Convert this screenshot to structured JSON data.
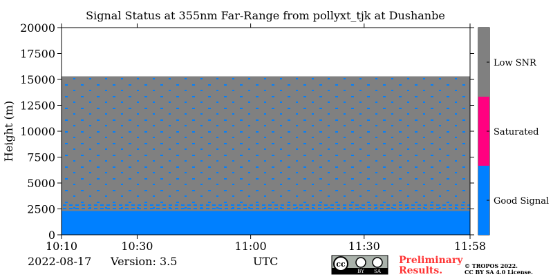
{
  "chart_data": {
    "type": "status-map",
    "title": "Signal Status at 355nm Far-Range from pollyxt_tjk at Dushanbe",
    "y_label": "Height (m)",
    "xlim": [
      610,
      718
    ],
    "xticks": [
      {
        "value": 610,
        "label": "10:10"
      },
      {
        "value": 630,
        "label": "10:30"
      },
      {
        "value": 660,
        "label": "11:00"
      },
      {
        "value": 690,
        "label": "11:30"
      },
      {
        "value": 718,
        "label": "11:58"
      }
    ],
    "ylim": [
      0,
      20000
    ],
    "yticks": [
      0,
      2500,
      5000,
      7500,
      10000,
      12500,
      15000,
      17500,
      20000
    ],
    "series": [
      {
        "name": "Good Signal",
        "color": "#0080ff"
      },
      {
        "name": "Saturated",
        "color": "#ff0080"
      },
      {
        "name": "Low SNR",
        "color": "#808080"
      }
    ],
    "layers": [
      {
        "status": 0,
        "bottom": 0,
        "top": 2300
      },
      {
        "status": 2,
        "bottom": 2300,
        "top": 15300
      }
    ],
    "footer": {
      "date": "2022-08-17",
      "version": "Version: 3.5",
      "x_label": "UTC",
      "preliminary": [
        "Preliminary",
        "Results."
      ],
      "copyright": "© TROPOS 2022.",
      "license": "CC BY SA 4.0 License.",
      "badge": [
        "cc",
        "BY",
        "SA"
      ]
    }
  }
}
